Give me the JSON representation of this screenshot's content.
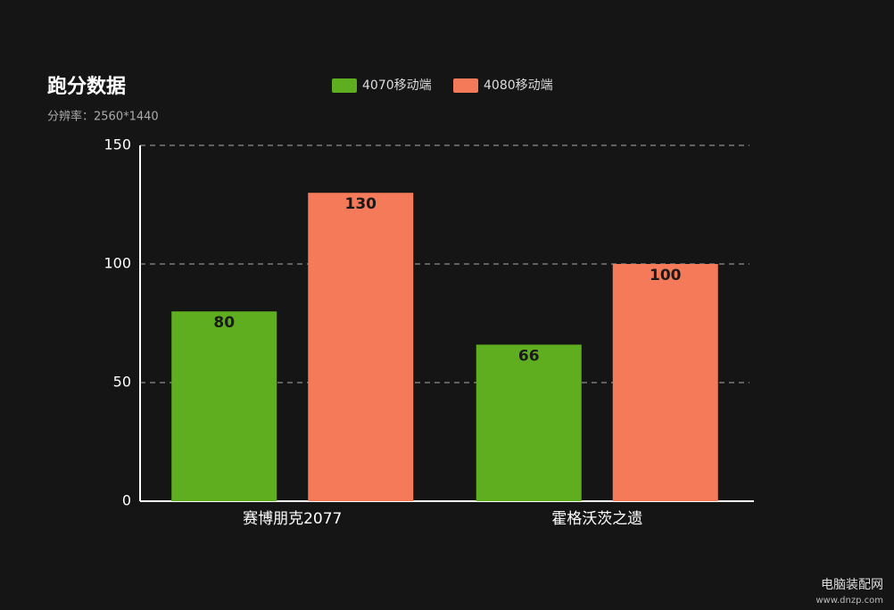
{
  "chart_data": {
    "type": "bar",
    "title": "跑分数据",
    "subtitle": "分辨率：2560*1440",
    "categories": [
      "赛博朋克2077",
      "霍格沃茨之遗"
    ],
    "series": [
      {
        "name": "4070移动端",
        "color": "#5fae1f",
        "values": [
          80,
          66
        ]
      },
      {
        "name": "4080移动端",
        "color": "#f47a5a",
        "values": [
          130,
          100
        ]
      }
    ],
    "ylim": [
      0,
      150
    ],
    "yticks": [
      0,
      50,
      100,
      150
    ],
    "grid": true,
    "legend": "top"
  },
  "watermark": [
    "电脑装配网",
    "www.dnzp.com"
  ]
}
